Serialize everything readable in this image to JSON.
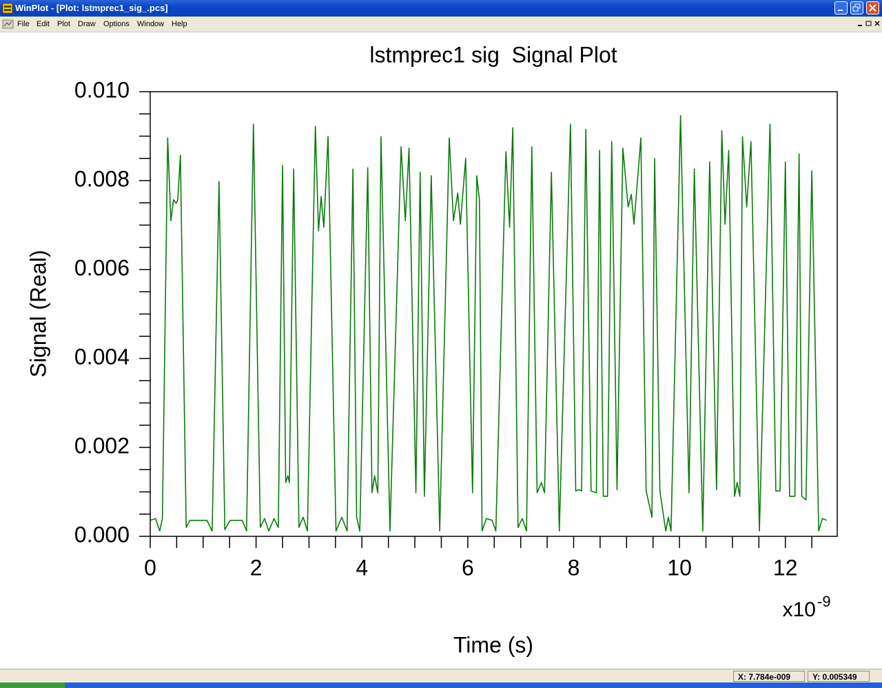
{
  "window": {
    "title": "WinPlot - [Plot: lstmprec1_sig_.pcs]",
    "menu": [
      "File",
      "Edit",
      "Plot",
      "Draw",
      "Options",
      "Window",
      "Help"
    ],
    "status": [
      "X: 7.784e-009",
      "Y: 0.005349"
    ]
  },
  "chart_data": {
    "type": "line",
    "title": "lstmprec1 sig  Signal Plot",
    "x_label": "Time (s)",
    "y_label": "Signal (Real)",
    "x_multiplier": {
      "base": "x10",
      "exponent": "-9"
    },
    "xlim": [
      0,
      12.98
    ],
    "ylim": [
      0,
      0.01
    ],
    "xticks": [
      0,
      2,
      4,
      6,
      8,
      10,
      12
    ],
    "yticks": [
      {
        "value": 0,
        "label": "0.000"
      },
      {
        "value": 0.002,
        "label": "0.002"
      },
      {
        "value": 0.004,
        "label": "0.004"
      },
      {
        "value": 0.006,
        "label": "0.006"
      },
      {
        "value": 0.008,
        "label": "0.008"
      },
      {
        "value": 0.01,
        "label": "0.010"
      }
    ],
    "xminorticks": [
      0.5,
      1,
      1.5,
      2.5,
      3,
      3.5,
      4.5,
      5,
      5.5,
      6.5,
      7,
      7.5,
      8.5,
      9,
      9.5,
      10.5,
      11,
      11.5,
      12.5
    ],
    "yminorticks": [
      0.0005,
      0.001,
      0.0015,
      0.0025,
      0.003,
      0.0035,
      0.0045,
      0.005,
      0.0055,
      0.0065,
      0.007,
      0.0075,
      0.0085,
      0.009,
      0.0095
    ],
    "grid": false,
    "x": [
      0,
      0.1,
      0.18,
      0.23,
      0.33,
      0.39,
      0.44,
      0.49,
      0.52,
      0.57,
      0.68,
      0.75,
      1.07,
      1.17,
      1.3,
      1.41,
      1.51,
      1.74,
      1.82,
      1.95,
      2.08,
      2.16,
      2.24,
      2.34,
      2.42,
      2.5,
      2.56,
      2.6,
      2.63,
      2.71,
      2.81,
      2.89,
      2.97,
      3.12,
      3.18,
      3.23,
      3.28,
      3.36,
      3.51,
      3.62,
      3.72,
      3.83,
      3.9,
      3.96,
      4.11,
      4.19,
      4.24,
      4.3,
      4.36,
      4.53,
      4.74,
      4.82,
      4.89,
      5.02,
      5.1,
      5.18,
      5.31,
      5.47,
      5.65,
      5.73,
      5.81,
      5.86,
      5.96,
      6.09,
      6.17,
      6.22,
      6.27,
      6.35,
      6.46,
      6.53,
      6.72,
      6.79,
      6.85,
      6.95,
      7.03,
      7.11,
      7.21,
      7.31,
      7.39,
      7.45,
      7.58,
      7.73,
      7.94,
      8.04,
      8.1,
      8.15,
      8.23,
      8.33,
      8.43,
      8.49,
      8.56,
      8.64,
      8.72,
      8.82,
      8.93,
      9.03,
      9.09,
      9.14,
      9.27,
      9.37,
      9.48,
      9.53,
      9.63,
      9.74,
      9.79,
      9.84,
      10.02,
      10.18,
      10.28,
      10.44,
      10.57,
      10.7,
      10.8,
      10.86,
      10.93,
      11.04,
      11.09,
      11.14,
      11.19,
      11.27,
      11.35,
      11.51,
      11.71,
      11.82,
      11.9,
      12.0,
      12.08,
      12.13,
      12.18,
      12.26,
      12.31,
      12.39,
      12.5,
      12.63,
      12.7,
      12.78
    ],
    "series": [
      {
        "color": "#0a7a0a",
        "values": [
          0.00036,
          0.0004,
          0.00012,
          0.0004,
          0.00896,
          0.0071,
          0.00757,
          0.00749,
          0.00757,
          0.00857,
          0.0002,
          0.00036,
          0.00036,
          0.00012,
          0.00798,
          0.00015,
          0.00036,
          0.00036,
          0.00012,
          0.00927,
          0.0002,
          0.0004,
          0.00012,
          0.0004,
          0.0002,
          0.00834,
          0.00121,
          0.00136,
          0.00121,
          0.00826,
          0.0002,
          0.00043,
          0.00012,
          0.00922,
          0.00687,
          0.00764,
          0.00695,
          0.00899,
          0.00012,
          0.00043,
          0.00012,
          0.00826,
          0.00043,
          0.00012,
          0.00829,
          0.00098,
          0.00136,
          0.00098,
          0.00899,
          0.00012,
          0.00876,
          0.0071,
          0.00873,
          0.00098,
          0.00819,
          0.0009,
          0.00811,
          0.00012,
          0.00896,
          0.0071,
          0.00772,
          0.00702,
          0.0085,
          0.00098,
          0.00811,
          0.00757,
          0.00012,
          0.0004,
          0.00036,
          0.00012,
          0.00865,
          0.00695,
          0.00919,
          0.0002,
          0.0004,
          0.00012,
          0.00876,
          0.00098,
          0.00121,
          0.00098,
          0.00819,
          0.00012,
          0.00927,
          0.00102,
          0.00105,
          0.00102,
          0.00915,
          0.00102,
          0.00098,
          0.00868,
          0.0009,
          0.0009,
          0.00888,
          0.00105,
          0.00873,
          0.00741,
          0.00769,
          0.00702,
          0.00896,
          0.00102,
          0.00043,
          0.0085,
          0.00102,
          0.00012,
          0.00043,
          0.00012,
          0.00946,
          0.00098,
          0.00826,
          0.00012,
          0.00842,
          0.00105,
          0.00912,
          0.00702,
          0.00868,
          0.0009,
          0.00121,
          0.0009,
          0.00899,
          0.00741,
          0.00888,
          0.00012,
          0.00927,
          0.00102,
          0.00102,
          0.00842,
          0.0009,
          0.0009,
          0.0009,
          0.0086,
          0.0009,
          0.00082,
          0.00822,
          0.00012,
          0.0004,
          0.00036
        ]
      }
    ]
  }
}
